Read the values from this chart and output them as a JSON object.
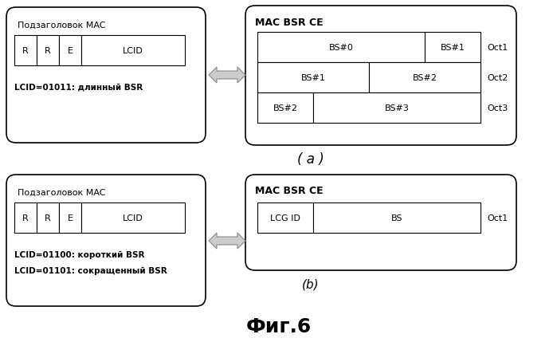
{
  "bg_color": "#ffffff",
  "fig_width": 6.99,
  "fig_height": 4.35,
  "fig_title": "Фиг.6",
  "fig_title_fontsize": 18,
  "section_a_label": "( a )",
  "section_b_label": "(b)",
  "mac_header_title": "Подзаголовок MAC",
  "mac_bsr_ce_title": "MAC BSR CE",
  "lcid_label_a": "LCID=01011: длинный BSR",
  "lcid_label_b1": "LCID=01100: короткий BSR",
  "lcid_label_b2": "LCID=01101: сокращенный BSR",
  "bsr_ce_a_rows": [
    [
      [
        "BS#0",
        3
      ],
      [
        "BS#1",
        1
      ]
    ],
    [
      [
        "BS#1",
        2
      ],
      [
        "BS#2",
        2
      ]
    ],
    [
      [
        "BS#2",
        1
      ],
      [
        "BS#3",
        3
      ]
    ]
  ],
  "bsr_ce_a_oct": [
    "Oct1",
    "Oct2",
    "Oct3"
  ],
  "bsr_ce_b_row": [
    [
      "LCG ID",
      1
    ],
    [
      "BS",
      3
    ]
  ],
  "bsr_ce_b_oct": "Oct1",
  "arrow_color": "#aaaaaa",
  "box_line_color": "#000000",
  "text_color": "#000000"
}
